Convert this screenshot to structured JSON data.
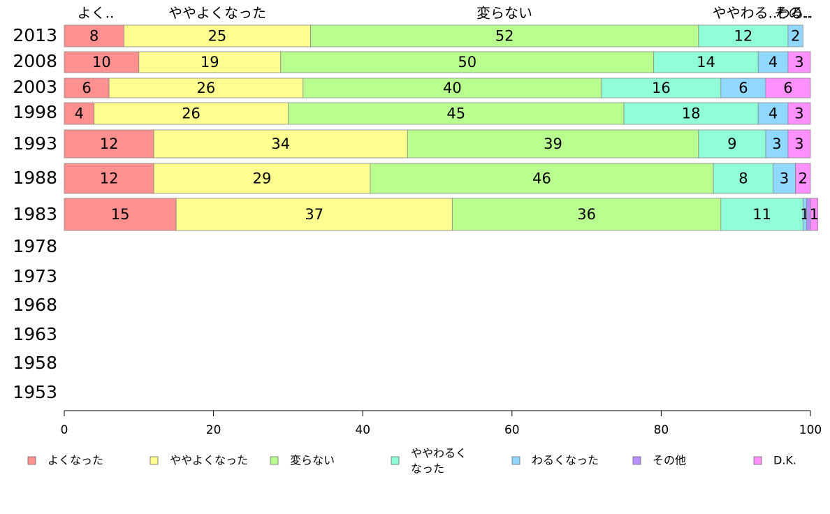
{
  "chart_data": {
    "type": "bar",
    "orientation": "horizontal",
    "stacked": true,
    "xlim": [
      0,
      100
    ],
    "xticks": [
      0,
      20,
      40,
      60,
      80,
      100
    ],
    "grid": false,
    "legend_position": "bottom",
    "categories": [
      "2013",
      "2008",
      "2003",
      "1998",
      "1993",
      "1988",
      "1983",
      "1978",
      "1973",
      "1968",
      "1963",
      "1958",
      "1953"
    ],
    "top_labels": [
      "よく..",
      "ややよくなった",
      "変らない",
      "ややわる..",
      "わる..",
      "その.."
    ],
    "series": [
      {
        "name": "よくなった",
        "color": "#ff9090",
        "values": [
          8,
          10,
          6,
          4,
          12,
          12,
          15,
          null,
          null,
          null,
          null,
          null,
          null
        ]
      },
      {
        "name": "ややよくなった",
        "color": "#ffff90",
        "values": [
          25,
          19,
          26,
          26,
          34,
          29,
          37,
          null,
          null,
          null,
          null,
          null,
          null
        ]
      },
      {
        "name": "変らない",
        "color": "#b8ff90",
        "values": [
          52,
          50,
          40,
          45,
          39,
          46,
          36,
          null,
          null,
          null,
          null,
          null,
          null
        ]
      },
      {
        "name": "ややわるく\nなった",
        "color": "#90ffd8",
        "values": [
          12,
          14,
          16,
          18,
          9,
          8,
          11,
          null,
          null,
          null,
          null,
          null,
          null
        ]
      },
      {
        "name": "わるくなった",
        "color": "#90d8ff",
        "values": [
          2,
          4,
          6,
          4,
          3,
          3,
          0.5,
          null,
          null,
          null,
          null,
          null,
          null
        ]
      },
      {
        "name": "その他",
        "color": "#b890ff",
        "values": [
          0,
          0,
          0,
          0,
          0,
          0,
          0.5,
          null,
          null,
          null,
          null,
          null,
          null
        ]
      },
      {
        "name": "D.K.",
        "color": "#ff90ff",
        "values": [
          0,
          3,
          6,
          3,
          3,
          2,
          1,
          null,
          null,
          null,
          null,
          null,
          null
        ]
      }
    ],
    "value_labels": [
      [
        "8",
        "25",
        "52",
        "12",
        "2",
        "",
        ""
      ],
      [
        "10",
        "19",
        "50",
        "14",
        "4",
        "",
        "3"
      ],
      [
        "6",
        "26",
        "40",
        "16",
        "6",
        "",
        "6"
      ],
      [
        "4",
        "26",
        "45",
        "18",
        "4",
        "",
        "3"
      ],
      [
        "12",
        "34",
        "39",
        "9",
        "3",
        "",
        "3"
      ],
      [
        "12",
        "29",
        "46",
        "8",
        "3",
        "",
        "2"
      ],
      [
        "15",
        "37",
        "36",
        "11",
        "1",
        "",
        "1"
      ]
    ]
  }
}
